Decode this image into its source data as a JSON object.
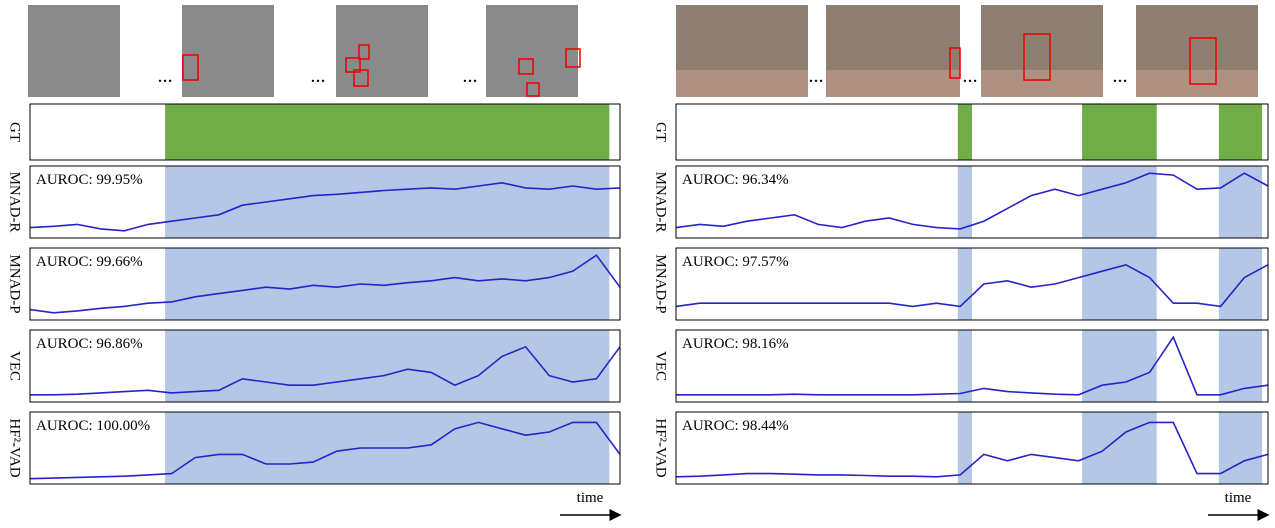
{
  "figure": {
    "row_labels": [
      "GT",
      "MNAD-R",
      "MNAD-P",
      "VEC",
      "HF²-VAD"
    ],
    "x_label": "time",
    "panels": [
      {
        "gt_intervals": [
          [
            0.229,
            0.982
          ]
        ],
        "rows": [
          {
            "auroc": "AUROC: 99.95%",
            "values": [
              0.1,
              0.12,
              0.15,
              0.08,
              0.05,
              0.15,
              0.2,
              0.25,
              0.3,
              0.45,
              0.5,
              0.55,
              0.6,
              0.62,
              0.65,
              0.68,
              0.7,
              0.72,
              0.7,
              0.75,
              0.8,
              0.72,
              0.7,
              0.75,
              0.7,
              0.72
            ]
          },
          {
            "auroc": "AUROC: 99.66%",
            "values": [
              0.1,
              0.05,
              0.08,
              0.12,
              0.15,
              0.2,
              0.22,
              0.3,
              0.35,
              0.4,
              0.45,
              0.42,
              0.48,
              0.45,
              0.5,
              0.48,
              0.52,
              0.55,
              0.6,
              0.55,
              0.58,
              0.55,
              0.6,
              0.7,
              0.95,
              0.45
            ]
          },
          {
            "auroc": "AUROC: 96.86%",
            "values": [
              0.05,
              0.05,
              0.06,
              0.08,
              0.1,
              0.12,
              0.08,
              0.1,
              0.12,
              0.3,
              0.25,
              0.2,
              0.2,
              0.25,
              0.3,
              0.35,
              0.45,
              0.4,
              0.2,
              0.35,
              0.65,
              0.8,
              0.35,
              0.25,
              0.3,
              0.8
            ]
          },
          {
            "auroc": "AUROC: 100.00%",
            "values": [
              0.02,
              0.03,
              0.04,
              0.05,
              0.06,
              0.08,
              0.1,
              0.35,
              0.4,
              0.4,
              0.25,
              0.25,
              0.28,
              0.45,
              0.5,
              0.5,
              0.5,
              0.55,
              0.8,
              0.9,
              0.8,
              0.7,
              0.75,
              0.9,
              0.9,
              0.4
            ]
          }
        ]
      },
      {
        "gt_intervals": [
          [
            0.476,
            0.5
          ],
          [
            0.686,
            0.812
          ],
          [
            0.917,
            0.99
          ]
        ],
        "rows": [
          {
            "auroc": "AUROC: 96.34%",
            "values": [
              0.1,
              0.15,
              0.12,
              0.2,
              0.25,
              0.3,
              0.15,
              0.1,
              0.2,
              0.25,
              0.15,
              0.1,
              0.08,
              0.2,
              0.4,
              0.6,
              0.7,
              0.6,
              0.7,
              0.8,
              0.95,
              0.92,
              0.7,
              0.72,
              0.95,
              0.75
            ]
          },
          {
            "auroc": "AUROC: 97.57%",
            "values": [
              0.15,
              0.2,
              0.2,
              0.2,
              0.2,
              0.2,
              0.2,
              0.2,
              0.2,
              0.2,
              0.15,
              0.2,
              0.15,
              0.5,
              0.55,
              0.45,
              0.5,
              0.6,
              0.7,
              0.8,
              0.6,
              0.2,
              0.2,
              0.15,
              0.6,
              0.8
            ]
          },
          {
            "auroc": "AUROC: 98.16%",
            "values": [
              0.05,
              0.05,
              0.05,
              0.05,
              0.05,
              0.06,
              0.05,
              0.05,
              0.05,
              0.05,
              0.05,
              0.06,
              0.07,
              0.15,
              0.1,
              0.08,
              0.06,
              0.05,
              0.2,
              0.25,
              0.4,
              0.95,
              0.05,
              0.05,
              0.15,
              0.2
            ]
          },
          {
            "auroc": "AUROC: 98.44%",
            "values": [
              0.05,
              0.06,
              0.08,
              0.1,
              0.1,
              0.09,
              0.08,
              0.08,
              0.07,
              0.06,
              0.06,
              0.05,
              0.08,
              0.4,
              0.3,
              0.4,
              0.35,
              0.3,
              0.45,
              0.75,
              0.9,
              0.9,
              0.1,
              0.1,
              0.3,
              0.4
            ]
          }
        ]
      }
    ]
  }
}
